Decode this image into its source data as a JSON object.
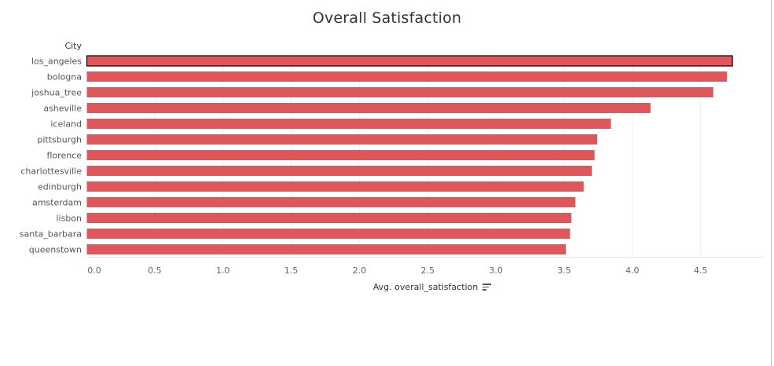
{
  "chart_data": {
    "type": "bar",
    "orientation": "horizontal",
    "title": "Overall Satisfaction",
    "ylabel": "City",
    "xlabel": "Avg. overall_satisfaction",
    "categories": [
      "los_angeles",
      "bologna",
      "joshua_tree",
      "asheville",
      "iceland",
      "pittsburgh",
      "florence",
      "charlottesville",
      "edinburgh",
      "amsterdam",
      "lisbon",
      "santa_barbara",
      "queenstown"
    ],
    "values": [
      4.73,
      4.69,
      4.59,
      4.13,
      3.84,
      3.74,
      3.72,
      3.7,
      3.64,
      3.58,
      3.55,
      3.54,
      3.51
    ],
    "xticks": [
      "0.0",
      "0.5",
      "1.0",
      "1.5",
      "2.0",
      "2.5",
      "3.0",
      "3.5",
      "4.0",
      "4.5"
    ],
    "xlim": [
      0,
      4.98
    ],
    "grid": true,
    "highlighted": "los_angeles",
    "bar_color": "#e0575b",
    "highlight_stroke": "#000000"
  }
}
